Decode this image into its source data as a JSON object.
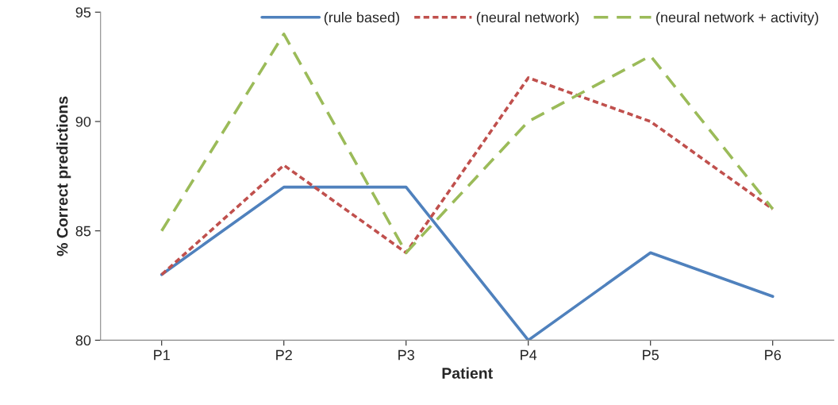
{
  "chart_data": {
    "type": "line",
    "xlabel": "Patient",
    "ylabel": "% Correct predictions",
    "categories": [
      "P1",
      "P2",
      "P3",
      "P4",
      "P5",
      "P6"
    ],
    "series": [
      {
        "name": "(rule based)",
        "color": "#4f81bd",
        "line_style": "solid",
        "values": [
          83,
          87,
          87,
          80,
          84,
          82
        ]
      },
      {
        "name": "(neural network)",
        "color": "#c0504d",
        "line_style": "dotted",
        "values": [
          83,
          88,
          84,
          92,
          90,
          86
        ]
      },
      {
        "name": "(neural network + activity)",
        "color": "#9bbb59",
        "line_style": "dashed",
        "values": [
          85,
          94,
          84,
          90,
          93,
          86
        ]
      }
    ],
    "ylim": [
      80,
      95
    ],
    "yticks": [
      80,
      85,
      90,
      95
    ],
    "grid": false,
    "legend": "top",
    "marker": "none"
  }
}
